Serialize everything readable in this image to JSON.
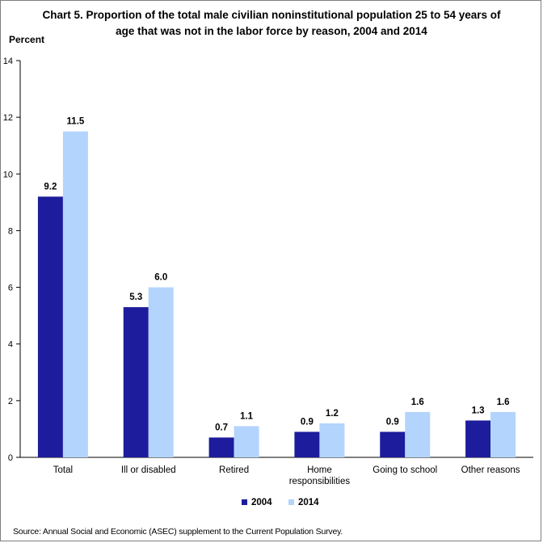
{
  "chart_data": {
    "type": "bar",
    "title": "Chart 5.  Proportion of the total male civilian noninstitutional population 25 to 54 years of age that was not in the labor force by reason, 2004 and 2014",
    "ylabel": "Percent",
    "xlabel": "",
    "ylim": [
      0,
      14
    ],
    "yticks": [
      0,
      2,
      4,
      6,
      8,
      10,
      12,
      14
    ],
    "grid": false,
    "legend_position": "bottom-center",
    "categories": [
      "Total",
      "Ill or disabled",
      "Retired",
      "Home responsibilities",
      "Going to school",
      "Other reasons"
    ],
    "category_lines": [
      [
        "Total"
      ],
      [
        "Ill or disabled"
      ],
      [
        "Retired"
      ],
      [
        "Home",
        "responsibilities"
      ],
      [
        "Going to school"
      ],
      [
        "Other reasons"
      ]
    ],
    "series": [
      {
        "name": "2004",
        "color": "#1c1c9c",
        "values": [
          9.2,
          5.3,
          0.7,
          0.9,
          0.9,
          1.3
        ],
        "labels": [
          "9.2",
          "5.3",
          "0.7",
          "0.9",
          "0.9",
          "1.3"
        ]
      },
      {
        "name": "2014",
        "color": "#b3d4fc",
        "values": [
          11.5,
          6.0,
          1.1,
          1.2,
          1.6,
          1.6
        ],
        "labels": [
          "11.5",
          "6.0",
          "1.1",
          "1.2",
          "1.6",
          "1.6"
        ]
      }
    ]
  },
  "source": "Source:  Annual Social and Economic (ASEC) supplement to the Current Population Survey."
}
